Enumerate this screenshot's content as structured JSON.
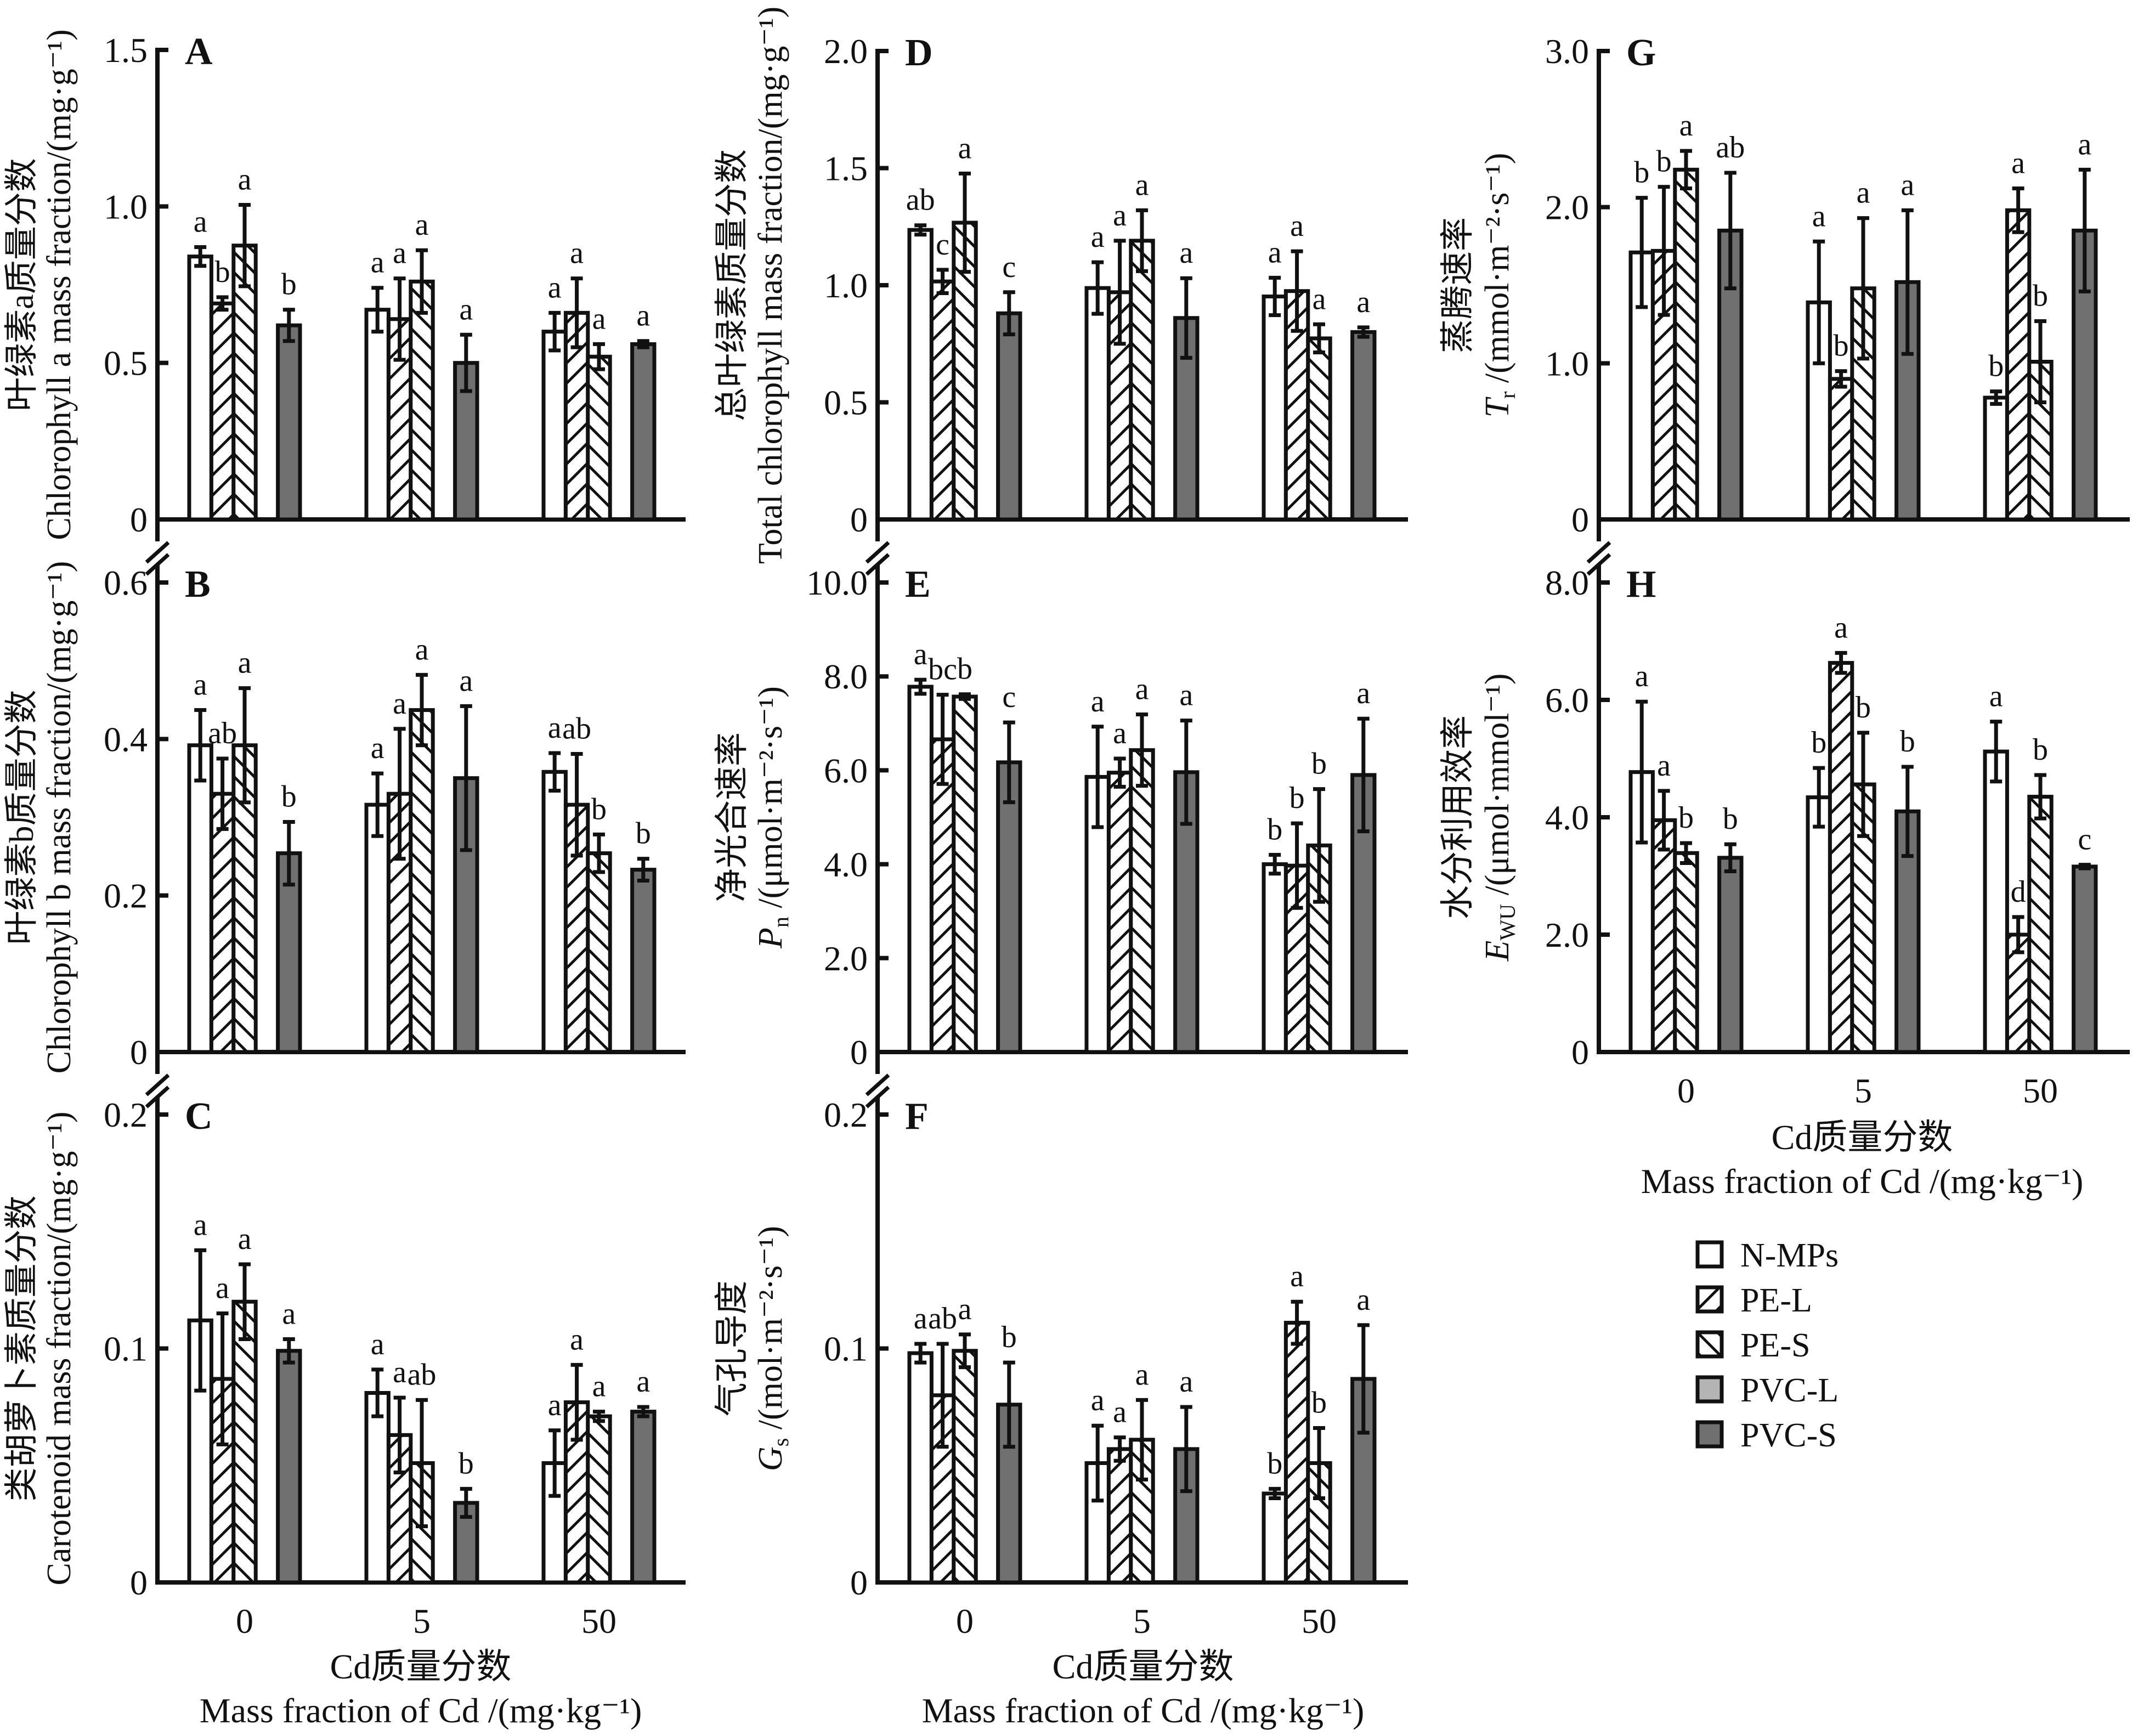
{
  "figure": {
    "x_tick_labels": [
      "0",
      "5",
      "50"
    ],
    "x_title_cn": "Cd质量分数",
    "x_title_en": "Mass fraction of Cd /(mg·kg⁻¹)"
  },
  "legend": {
    "items": [
      {
        "name": "N-MPs",
        "pattern": "open",
        "color": "#ffffff"
      },
      {
        "name": "PE-L",
        "pattern": "hatch-forward",
        "color": "#ffffff"
      },
      {
        "name": "PE-S",
        "pattern": "hatch-back",
        "color": "#ffffff"
      },
      {
        "name": "PVC-L",
        "pattern": "solid",
        "color": "#b4b4b4"
      },
      {
        "name": "PVC-S",
        "pattern": "solid",
        "color": "#707070"
      }
    ]
  },
  "chart_data": [
    {
      "type": "bar",
      "panel": "A",
      "ylabel_cn": "叶绿素a质量分数",
      "ylabel_en": "Chlorophyll a mass fraction/(mg·g⁻¹)",
      "xlabel": "",
      "categories": [
        "0",
        "5",
        "50"
      ],
      "ylim": [
        0,
        1.5
      ],
      "yticks": [
        0,
        0.5,
        1.0,
        1.5
      ],
      "ytick_labels": [
        "0",
        "0.5",
        "1.0",
        "1.5"
      ],
      "series": [
        {
          "name": "N-MPs",
          "values": [
            0.84,
            0.67,
            0.6
          ],
          "errors": [
            0.03,
            0.07,
            0.06
          ],
          "letters": [
            "a",
            "a",
            "a"
          ]
        },
        {
          "name": "PE-L",
          "values": [
            0.69,
            0.64,
            0.66
          ],
          "errors": [
            0.02,
            0.13,
            0.11
          ],
          "letters": [
            "b",
            "a",
            "a"
          ]
        },
        {
          "name": "PE-S",
          "values": [
            0.875,
            0.76,
            0.52
          ],
          "errors": [
            0.13,
            0.1,
            0.04
          ],
          "letters": [
            "a",
            "a",
            "a"
          ]
        },
        {
          "name": "PVC-L",
          "values": [
            null,
            null,
            null
          ],
          "errors": [
            null,
            null,
            null
          ],
          "letters": [
            "",
            "",
            ""
          ]
        },
        {
          "name": "PVC-S",
          "values": [
            0.62,
            0.5,
            0.56
          ],
          "errors": [
            0.05,
            0.09,
            0.01
          ],
          "letters": [
            "b",
            "a",
            "a"
          ]
        }
      ]
    },
    {
      "type": "bar",
      "panel": "B",
      "ylabel_cn": "叶绿素b质量分数",
      "ylabel_en": "Chlorophyll b mass fraction/(mg·g⁻¹)",
      "xlabel": "",
      "categories": [
        "0",
        "5",
        "50"
      ],
      "ylim": [
        0,
        0.6
      ],
      "yticks": [
        0,
        0.2,
        0.4,
        0.6
      ],
      "ytick_labels": [
        "0",
        "0.2",
        "0.4",
        "0.6"
      ],
      "series": [
        {
          "name": "N-MPs",
          "values": [
            0.392,
            0.316,
            0.358
          ],
          "errors": [
            0.045,
            0.04,
            0.024
          ],
          "letters": [
            "a",
            "a",
            "a"
          ]
        },
        {
          "name": "PE-L",
          "values": [
            0.33,
            0.33,
            0.316
          ],
          "errors": [
            0.045,
            0.083,
            0.065
          ],
          "letters": [
            "ab",
            "a",
            "ab"
          ]
        },
        {
          "name": "PE-S",
          "values": [
            0.392,
            0.437,
            0.254
          ],
          "errors": [
            0.073,
            0.045,
            0.024
          ],
          "letters": [
            "a",
            "a",
            "b"
          ]
        },
        {
          "name": "PVC-L",
          "values": [
            null,
            null,
            null
          ],
          "errors": [
            null,
            null,
            null
          ],
          "letters": [
            "",
            "",
            ""
          ]
        },
        {
          "name": "PVC-S",
          "values": [
            0.254,
            0.35,
            0.233
          ],
          "errors": [
            0.04,
            0.092,
            0.014
          ],
          "letters": [
            "b",
            "a",
            "b"
          ]
        }
      ]
    },
    {
      "type": "bar",
      "panel": "C",
      "ylabel_cn": "类胡萝卜素质量分数",
      "ylabel_en": "Carotenoid mass fraction/(mg·g⁻¹)",
      "xlabel": "Cd质量分数 / Mass fraction of Cd /(mg·kg⁻¹)",
      "categories": [
        "0",
        "5",
        "50"
      ],
      "ylim": [
        0,
        0.2
      ],
      "yticks": [
        0,
        0.1,
        0.2
      ],
      "ytick_labels": [
        "0",
        "0.1",
        "0.2"
      ],
      "series": [
        {
          "name": "N-MPs",
          "values": [
            0.112,
            0.081,
            0.051
          ],
          "errors": [
            0.03,
            0.01,
            0.014
          ],
          "letters": [
            "a",
            "a",
            "a"
          ]
        },
        {
          "name": "PE-L",
          "values": [
            0.087,
            0.063,
            0.077
          ],
          "errors": [
            0.028,
            0.016,
            0.016
          ],
          "letters": [
            "a",
            "a",
            "a"
          ]
        },
        {
          "name": "PE-S",
          "values": [
            0.12,
            0.051,
            0.071
          ],
          "errors": [
            0.016,
            0.027,
            0.002
          ],
          "letters": [
            "a",
            "ab",
            "a"
          ]
        },
        {
          "name": "PVC-L",
          "values": [
            null,
            null,
            null
          ],
          "errors": [
            null,
            null,
            null
          ],
          "letters": [
            "",
            "",
            ""
          ]
        },
        {
          "name": "PVC-S",
          "values": [
            0.099,
            0.034,
            0.073
          ],
          "errors": [
            0.005,
            0.006,
            0.002
          ],
          "letters": [
            "a",
            "b",
            "a"
          ]
        }
      ]
    },
    {
      "type": "bar",
      "panel": "D",
      "ylabel_cn": "总叶绿素质量分数",
      "ylabel_en": "Total chlorophyll mass fraction/(mg·g⁻¹)",
      "xlabel": "",
      "categories": [
        "0",
        "5",
        "50"
      ],
      "ylim": [
        0,
        2.0
      ],
      "yticks": [
        0,
        0.5,
        1.0,
        1.5,
        2.0
      ],
      "ytick_labels": [
        "0",
        "0.5",
        "1.0",
        "1.5",
        "2.0"
      ],
      "series": [
        {
          "name": "N-MPs",
          "values": [
            1.236,
            0.988,
            0.952
          ],
          "errors": [
            0.02,
            0.11,
            0.08
          ],
          "letters": [
            "ab",
            "a",
            "a"
          ]
        },
        {
          "name": "PE-L",
          "values": [
            1.016,
            0.97,
            0.975
          ],
          "errors": [
            0.05,
            0.22,
            0.17
          ],
          "letters": [
            "c",
            "a",
            "a"
          ]
        },
        {
          "name": "PE-S",
          "values": [
            1.267,
            1.19,
            0.773
          ],
          "errors": [
            0.21,
            0.13,
            0.06
          ],
          "letters": [
            "a",
            "a",
            "a"
          ]
        },
        {
          "name": "PVC-L",
          "values": [
            null,
            null,
            null
          ],
          "errors": [
            null,
            null,
            null
          ],
          "letters": [
            "",
            "",
            ""
          ]
        },
        {
          "name": "PVC-S",
          "values": [
            0.88,
            0.86,
            0.8
          ],
          "errors": [
            0.09,
            0.17,
            0.02
          ],
          "letters": [
            "c",
            "a",
            "a"
          ]
        }
      ]
    },
    {
      "type": "bar",
      "panel": "E",
      "ylabel_cn": "净光合速率",
      "ylabel_en": "Pn /(μmol·m⁻²·s⁻¹)",
      "ylabel_symbol": "P",
      "ylabel_sub": "n",
      "ylabel_unit": " /(μmol·m⁻²·s⁻¹)",
      "xlabel": "",
      "categories": [
        "0",
        "5",
        "50"
      ],
      "ylim": [
        0,
        10.0
      ],
      "yticks": [
        0,
        2.0,
        4.0,
        6.0,
        8.0,
        10.0
      ],
      "ytick_labels": [
        "0",
        "2.0",
        "4.0",
        "6.0",
        "8.0",
        "10.0"
      ],
      "series": [
        {
          "name": "N-MPs",
          "values": [
            7.78,
            5.86,
            4.0
          ],
          "errors": [
            0.15,
            1.07,
            0.2
          ],
          "letters": [
            "a",
            "a",
            "b"
          ]
        },
        {
          "name": "PE-L",
          "values": [
            6.66,
            5.95,
            3.97
          ],
          "errors": [
            0.95,
            0.3,
            0.9
          ],
          "letters": [
            "bc",
            "a",
            "b"
          ]
        },
        {
          "name": "PE-S",
          "values": [
            7.57,
            6.43,
            4.4
          ],
          "errors": [
            0.05,
            0.76,
            1.2
          ],
          "letters": [
            "b",
            "a",
            "b"
          ]
        },
        {
          "name": "PVC-L",
          "values": [
            null,
            null,
            null
          ],
          "errors": [
            null,
            null,
            null
          ],
          "letters": [
            "",
            "",
            ""
          ]
        },
        {
          "name": "PVC-S",
          "values": [
            6.17,
            5.96,
            5.9
          ],
          "errors": [
            0.85,
            1.1,
            1.2
          ],
          "letters": [
            "c",
            "a",
            "a"
          ]
        }
      ]
    },
    {
      "type": "bar",
      "panel": "F",
      "ylabel_cn": "气孔导度",
      "ylabel_en": "Gs /(mol·m⁻²·s⁻¹)",
      "ylabel_symbol": "G",
      "ylabel_sub": "s",
      "ylabel_unit": " /(mol·m⁻²·s⁻¹)",
      "xlabel": "Cd质量分数 / Mass fraction of Cd /(mg·kg⁻¹)",
      "categories": [
        "0",
        "5",
        "50"
      ],
      "ylim": [
        0,
        0.2
      ],
      "yticks": [
        0,
        0.1,
        0.2
      ],
      "ytick_labels": [
        "0",
        "0.1",
        "0.2"
      ],
      "series": [
        {
          "name": "N-MPs",
          "values": [
            0.098,
            0.051,
            0.038
          ],
          "errors": [
            0.004,
            0.016,
            0.002
          ],
          "letters": [
            "a",
            "a",
            "b"
          ]
        },
        {
          "name": "PE-L",
          "values": [
            0.08,
            0.057,
            0.111
          ],
          "errors": [
            0.022,
            0.005,
            0.009
          ],
          "letters": [
            "ab",
            "a",
            "a"
          ]
        },
        {
          "name": "PE-S",
          "values": [
            0.099,
            0.061,
            0.051
          ],
          "errors": [
            0.007,
            0.017,
            0.015
          ],
          "letters": [
            "a",
            "a",
            "b"
          ]
        },
        {
          "name": "PVC-L",
          "values": [
            null,
            null,
            null
          ],
          "errors": [
            null,
            null,
            null
          ],
          "letters": [
            "",
            "",
            ""
          ]
        },
        {
          "name": "PVC-S",
          "values": [
            0.076,
            0.057,
            0.087
          ],
          "errors": [
            0.018,
            0.018,
            0.023
          ],
          "letters": [
            "b",
            "a",
            "a"
          ]
        }
      ]
    },
    {
      "type": "bar",
      "panel": "G",
      "ylabel_cn": "蒸腾速率",
      "ylabel_en": "Tr /(mmol·m⁻²·s⁻¹)",
      "ylabel_symbol": "T",
      "ylabel_sub": "r",
      "ylabel_unit": " /(mmol·m⁻²·s⁻¹)",
      "xlabel": "",
      "categories": [
        "0",
        "5",
        "50"
      ],
      "ylim": [
        0,
        3.0
      ],
      "yticks": [
        0,
        1.0,
        2.0,
        3.0
      ],
      "ytick_labels": [
        "0",
        "1.0",
        "2.0",
        "3.0"
      ],
      "series": [
        {
          "name": "N-MPs",
          "values": [
            1.71,
            1.39,
            0.78
          ],
          "errors": [
            0.35,
            0.39,
            0.04
          ],
          "letters": [
            "b",
            "a",
            "b"
          ]
        },
        {
          "name": "PE-L",
          "values": [
            1.72,
            0.9,
            1.98
          ],
          "errors": [
            0.41,
            0.05,
            0.14
          ],
          "letters": [
            "b",
            "b",
            "a"
          ]
        },
        {
          "name": "PE-S",
          "values": [
            2.24,
            1.48,
            1.01
          ],
          "errors": [
            0.12,
            0.45,
            0.26
          ],
          "letters": [
            "a",
            "a",
            "b"
          ]
        },
        {
          "name": "PVC-L",
          "values": [
            null,
            null,
            null
          ],
          "errors": [
            null,
            null,
            null
          ],
          "letters": [
            "",
            "",
            ""
          ]
        },
        {
          "name": "PVC-S",
          "values": [
            1.85,
            1.52,
            1.85
          ],
          "errors": [
            0.37,
            0.46,
            0.39
          ],
          "letters": [
            "ab",
            "a",
            "a"
          ]
        }
      ]
    },
    {
      "type": "bar",
      "panel": "H",
      "ylabel_cn": "水分利用效率",
      "ylabel_en": "EWU /(μmol·mmol⁻¹)",
      "ylabel_symbol": "E",
      "ylabel_sub": "WU",
      "ylabel_unit": " /(μmol·mmol⁻¹)",
      "xlabel": "Cd质量分数 / Mass fraction of Cd /(mg·kg⁻¹)",
      "categories": [
        "0",
        "5",
        "50"
      ],
      "ylim": [
        0,
        8.0
      ],
      "yticks": [
        0,
        2.0,
        4.0,
        6.0,
        8.0
      ],
      "ytick_labels": [
        "0",
        "2.0",
        "4.0",
        "6.0",
        "8.0"
      ],
      "series": [
        {
          "name": "N-MPs",
          "values": [
            4.77,
            4.34,
            5.12
          ],
          "errors": [
            1.2,
            0.5,
            0.51
          ],
          "letters": [
            "a",
            "b",
            "a"
          ]
        },
        {
          "name": "PE-L",
          "values": [
            3.95,
            6.63,
            2.0
          ],
          "errors": [
            0.5,
            0.17,
            0.3
          ],
          "letters": [
            "a",
            "a",
            "d"
          ]
        },
        {
          "name": "PE-S",
          "values": [
            3.39,
            4.56,
            4.35
          ],
          "errors": [
            0.17,
            0.88,
            0.37
          ],
          "letters": [
            "b",
            "b",
            "b"
          ]
        },
        {
          "name": "PVC-L",
          "values": [
            null,
            null,
            null
          ],
          "errors": [
            null,
            null,
            null
          ],
          "letters": [
            "",
            "",
            ""
          ]
        },
        {
          "name": "PVC-S",
          "values": [
            3.31,
            4.1,
            3.16
          ],
          "errors": [
            0.23,
            0.76,
            0.03
          ],
          "letters": [
            "b",
            "b",
            "c"
          ]
        }
      ]
    }
  ]
}
